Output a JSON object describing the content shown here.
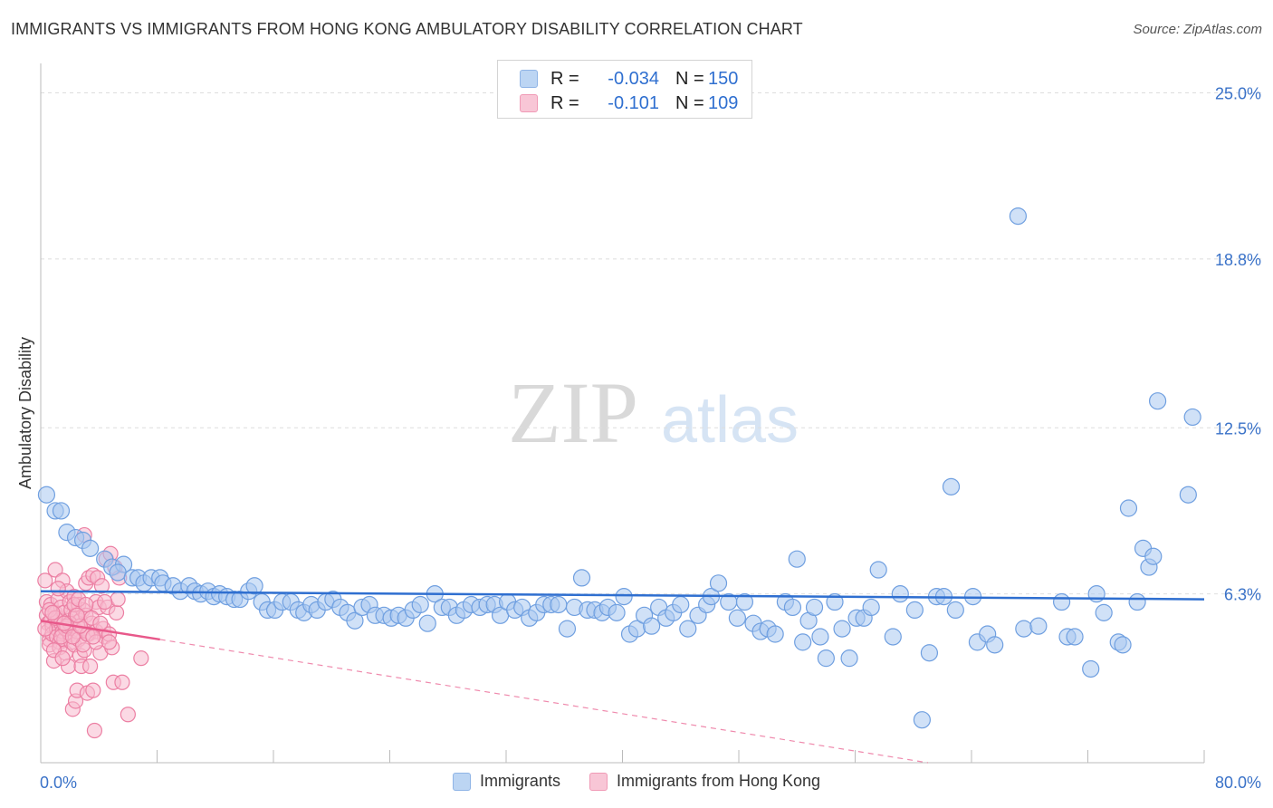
{
  "header": {
    "title": "IMMIGRANTS VS IMMIGRANTS FROM HONG KONG AMBULATORY DISABILITY CORRELATION CHART",
    "source": "Source: ZipAtlas.com"
  },
  "watermark": {
    "zip": "ZIP",
    "atlas": "atlas"
  },
  "stats": {
    "rows": [
      {
        "r_label": "R =",
        "r_value": "-0.034",
        "n_label": "N =",
        "n_value": "150"
      },
      {
        "r_label": "R =",
        "r_value": "-0.101",
        "n_label": "N =",
        "n_value": "109"
      }
    ]
  },
  "legend": {
    "items": [
      "Immigrants",
      "Immigrants from Hong Kong"
    ]
  },
  "colors": {
    "blue_fill": "#a9c8f0",
    "blue_stroke": "#6f9fe0",
    "blue_line": "#2f6fd0",
    "pink_fill": "#f7b9cd",
    "pink_stroke": "#ec7fa3",
    "pink_line": "#e8588a",
    "grid": "#dedede",
    "axis_label": "#3a72c8"
  },
  "chart_data": {
    "type": "scatter",
    "title": "IMMIGRANTS VS IMMIGRANTS FROM HONG KONG AMBULATORY DISABILITY CORRELATION CHART",
    "xlabel": "",
    "ylabel": "Ambulatory Disability",
    "xlim": [
      0,
      80
    ],
    "ylim": [
      0,
      26.1
    ],
    "x_tick_labels": [
      "0.0%",
      "80.0%"
    ],
    "y_ticks": [
      6.3,
      12.5,
      18.8,
      25.0
    ],
    "y_tick_labels": [
      "6.3%",
      "12.5%",
      "18.8%",
      "25.0%"
    ],
    "grid": "horizontal dashed",
    "legend_position": "bottom",
    "series": [
      {
        "name": "Immigrants",
        "trend": {
          "x": [
            0,
            80
          ],
          "y": [
            6.4,
            6.1
          ]
        },
        "trend_dashed": null,
        "points": [
          [
            0.4,
            10.0
          ],
          [
            1.0,
            9.4
          ],
          [
            1.4,
            9.4
          ],
          [
            1.8,
            8.6
          ],
          [
            2.4,
            8.4
          ],
          [
            2.9,
            8.3
          ],
          [
            3.4,
            8.0
          ],
          [
            4.4,
            7.6
          ],
          [
            4.9,
            7.3
          ],
          [
            5.7,
            7.4
          ],
          [
            5.3,
            7.1
          ],
          [
            6.3,
            6.9
          ],
          [
            6.7,
            6.9
          ],
          [
            7.1,
            6.7
          ],
          [
            7.6,
            6.9
          ],
          [
            8.2,
            6.9
          ],
          [
            8.4,
            6.7
          ],
          [
            9.1,
            6.6
          ],
          [
            9.6,
            6.4
          ],
          [
            10.2,
            6.6
          ],
          [
            10.6,
            6.4
          ],
          [
            11.0,
            6.3
          ],
          [
            11.5,
            6.4
          ],
          [
            11.9,
            6.2
          ],
          [
            12.3,
            6.3
          ],
          [
            12.8,
            6.2
          ],
          [
            13.3,
            6.1
          ],
          [
            13.7,
            6.1
          ],
          [
            14.3,
            6.4
          ],
          [
            14.7,
            6.6
          ],
          [
            15.2,
            6.0
          ],
          [
            15.6,
            5.7
          ],
          [
            16.1,
            5.7
          ],
          [
            16.6,
            6.0
          ],
          [
            17.2,
            6.0
          ],
          [
            17.7,
            5.7
          ],
          [
            18.1,
            5.6
          ],
          [
            18.6,
            5.9
          ],
          [
            19.0,
            5.7
          ],
          [
            19.6,
            6.0
          ],
          [
            20.1,
            6.1
          ],
          [
            20.6,
            5.8
          ],
          [
            21.1,
            5.6
          ],
          [
            21.6,
            5.3
          ],
          [
            22.1,
            5.8
          ],
          [
            22.6,
            5.9
          ],
          [
            23.0,
            5.5
          ],
          [
            23.6,
            5.5
          ],
          [
            24.1,
            5.4
          ],
          [
            24.6,
            5.5
          ],
          [
            25.1,
            5.4
          ],
          [
            25.6,
            5.7
          ],
          [
            26.1,
            5.9
          ],
          [
            26.6,
            5.2
          ],
          [
            27.1,
            6.3
          ],
          [
            27.6,
            5.8
          ],
          [
            28.1,
            5.8
          ],
          [
            28.6,
            5.5
          ],
          [
            29.1,
            5.7
          ],
          [
            29.6,
            5.9
          ],
          [
            30.2,
            5.8
          ],
          [
            30.7,
            5.9
          ],
          [
            31.2,
            5.9
          ],
          [
            31.6,
            5.5
          ],
          [
            32.1,
            6.0
          ],
          [
            32.6,
            5.7
          ],
          [
            33.1,
            5.8
          ],
          [
            33.6,
            5.4
          ],
          [
            34.1,
            5.6
          ],
          [
            34.6,
            5.9
          ],
          [
            35.1,
            5.9
          ],
          [
            35.6,
            5.9
          ],
          [
            36.2,
            5.0
          ],
          [
            36.7,
            5.8
          ],
          [
            37.2,
            6.9
          ],
          [
            37.6,
            5.7
          ],
          [
            38.1,
            5.7
          ],
          [
            38.6,
            5.6
          ],
          [
            39.0,
            5.8
          ],
          [
            39.6,
            5.6
          ],
          [
            40.1,
            6.2
          ],
          [
            40.5,
            4.8
          ],
          [
            41.0,
            5.0
          ],
          [
            41.5,
            5.5
          ],
          [
            42.0,
            5.1
          ],
          [
            42.5,
            5.8
          ],
          [
            43.0,
            5.4
          ],
          [
            43.5,
            5.6
          ],
          [
            44.0,
            5.9
          ],
          [
            44.5,
            5.0
          ],
          [
            45.2,
            5.5
          ],
          [
            45.8,
            5.9
          ],
          [
            46.1,
            6.2
          ],
          [
            46.6,
            6.7
          ],
          [
            47.3,
            6.0
          ],
          [
            47.9,
            5.4
          ],
          [
            48.4,
            6.0
          ],
          [
            49.0,
            5.2
          ],
          [
            49.5,
            4.9
          ],
          [
            50.0,
            5.0
          ],
          [
            50.5,
            4.8
          ],
          [
            51.2,
            6.0
          ],
          [
            51.7,
            5.8
          ],
          [
            52.0,
            7.6
          ],
          [
            52.4,
            4.5
          ],
          [
            52.8,
            5.3
          ],
          [
            53.2,
            5.8
          ],
          [
            53.6,
            4.7
          ],
          [
            54.0,
            3.9
          ],
          [
            54.6,
            6.0
          ],
          [
            55.1,
            5.0
          ],
          [
            55.6,
            3.9
          ],
          [
            56.1,
            5.4
          ],
          [
            56.6,
            5.4
          ],
          [
            57.1,
            5.8
          ],
          [
            57.6,
            7.2
          ],
          [
            58.6,
            4.7
          ],
          [
            59.1,
            6.3
          ],
          [
            60.1,
            5.7
          ],
          [
            60.6,
            1.6
          ],
          [
            61.1,
            4.1
          ],
          [
            61.6,
            6.2
          ],
          [
            62.1,
            6.2
          ],
          [
            62.6,
            10.3
          ],
          [
            62.9,
            5.7
          ],
          [
            64.1,
            6.2
          ],
          [
            64.4,
            4.5
          ],
          [
            65.1,
            4.8
          ],
          [
            65.6,
            4.4
          ],
          [
            67.2,
            20.4
          ],
          [
            67.6,
            5.0
          ],
          [
            68.6,
            5.1
          ],
          [
            70.2,
            6.0
          ],
          [
            70.6,
            4.7
          ],
          [
            71.1,
            4.7
          ],
          [
            72.2,
            3.5
          ],
          [
            72.6,
            6.3
          ],
          [
            73.1,
            5.6
          ],
          [
            74.1,
            4.5
          ],
          [
            74.4,
            4.4
          ],
          [
            74.8,
            9.5
          ],
          [
            75.4,
            6.0
          ],
          [
            75.8,
            8.0
          ],
          [
            76.2,
            7.3
          ],
          [
            76.5,
            7.7
          ],
          [
            76.8,
            13.5
          ],
          [
            78.9,
            10.0
          ],
          [
            79.2,
            12.9
          ]
        ]
      },
      {
        "name": "Immigrants from Hong Kong",
        "trend": {
          "x": [
            0,
            8.2
          ],
          "y": [
            5.3,
            4.6
          ]
        },
        "trend_dashed": {
          "x": [
            8.2,
            61.0
          ],
          "y": [
            4.6,
            0.0
          ]
        },
        "points": [
          [
            0.3,
            6.8
          ],
          [
            0.4,
            6.0
          ],
          [
            0.4,
            5.5
          ],
          [
            0.5,
            5.2
          ],
          [
            0.5,
            4.9
          ],
          [
            0.6,
            4.6
          ],
          [
            0.6,
            4.4
          ],
          [
            0.7,
            5.9
          ],
          [
            0.7,
            5.3
          ],
          [
            0.8,
            5.1
          ],
          [
            0.8,
            4.8
          ],
          [
            0.9,
            3.8
          ],
          [
            1.0,
            7.2
          ],
          [
            1.0,
            5.6
          ],
          [
            1.1,
            5.0
          ],
          [
            1.1,
            4.7
          ],
          [
            1.2,
            6.1
          ],
          [
            1.2,
            5.4
          ],
          [
            1.3,
            4.5
          ],
          [
            1.3,
            4.3
          ],
          [
            1.4,
            5.8
          ],
          [
            1.4,
            5.2
          ],
          [
            1.5,
            6.8
          ],
          [
            1.5,
            4.9
          ],
          [
            1.6,
            5.6
          ],
          [
            1.6,
            4.6
          ],
          [
            1.7,
            4.1
          ],
          [
            1.8,
            6.4
          ],
          [
            1.8,
            5.0
          ],
          [
            1.9,
            5.3
          ],
          [
            1.9,
            3.6
          ],
          [
            2.0,
            6.0
          ],
          [
            2.0,
            4.8
          ],
          [
            2.1,
            4.5
          ],
          [
            2.1,
            5.7
          ],
          [
            2.2,
            5.1
          ],
          [
            2.2,
            2.0
          ],
          [
            2.3,
            6.2
          ],
          [
            2.3,
            4.4
          ],
          [
            2.4,
            5.5
          ],
          [
            2.4,
            2.3
          ],
          [
            2.5,
            4.9
          ],
          [
            2.5,
            2.7
          ],
          [
            2.6,
            5.9
          ],
          [
            2.6,
            4.6
          ],
          [
            2.7,
            5.3
          ],
          [
            2.7,
            4.0
          ],
          [
            2.8,
            3.6
          ],
          [
            2.9,
            5.7
          ],
          [
            2.9,
            5.0
          ],
          [
            3.0,
            8.5
          ],
          [
            3.0,
            4.2
          ],
          [
            3.1,
            6.7
          ],
          [
            3.1,
            5.5
          ],
          [
            3.2,
            2.6
          ],
          [
            3.3,
            6.9
          ],
          [
            3.3,
            4.8
          ],
          [
            3.4,
            3.6
          ],
          [
            3.5,
            5.2
          ],
          [
            3.6,
            7.0
          ],
          [
            3.6,
            2.7
          ],
          [
            3.7,
            1.2
          ],
          [
            3.8,
            6.0
          ],
          [
            3.8,
            4.9
          ],
          [
            3.9,
            6.9
          ],
          [
            4.0,
            5.8
          ],
          [
            4.1,
            4.1
          ],
          [
            4.2,
            6.6
          ],
          [
            4.3,
            5.0
          ],
          [
            4.4,
            4.7
          ],
          [
            4.5,
            7.6
          ],
          [
            4.6,
            5.8
          ],
          [
            4.7,
            4.8
          ],
          [
            4.8,
            7.8
          ],
          [
            4.9,
            4.3
          ],
          [
            5.0,
            3.0
          ],
          [
            5.1,
            7.3
          ],
          [
            5.2,
            5.6
          ],
          [
            5.3,
            6.1
          ],
          [
            5.4,
            6.9
          ],
          [
            5.6,
            3.0
          ],
          [
            6.0,
            1.8
          ],
          [
            6.9,
            3.9
          ],
          [
            0.3,
            5.0
          ],
          [
            0.6,
            5.7
          ],
          [
            0.9,
            4.2
          ],
          [
            1.2,
            6.5
          ],
          [
            1.5,
            3.9
          ],
          [
            1.7,
            5.0
          ],
          [
            2.0,
            5.2
          ],
          [
            2.3,
            5.9
          ],
          [
            2.6,
            6.1
          ],
          [
            2.9,
            4.4
          ],
          [
            3.2,
            4.8
          ],
          [
            3.5,
            5.4
          ],
          [
            3.8,
            4.5
          ],
          [
            4.1,
            5.2
          ],
          [
            4.4,
            6.0
          ],
          [
            4.7,
            4.5
          ],
          [
            1.0,
            5.4
          ],
          [
            1.4,
            4.7
          ],
          [
            1.8,
            5.1
          ],
          [
            2.2,
            4.7
          ],
          [
            2.7,
            5.1
          ],
          [
            3.1,
            5.9
          ],
          [
            3.6,
            4.7
          ],
          [
            0.8,
            5.6
          ],
          [
            1.6,
            5.2
          ],
          [
            2.5,
            5.5
          ]
        ]
      }
    ]
  }
}
